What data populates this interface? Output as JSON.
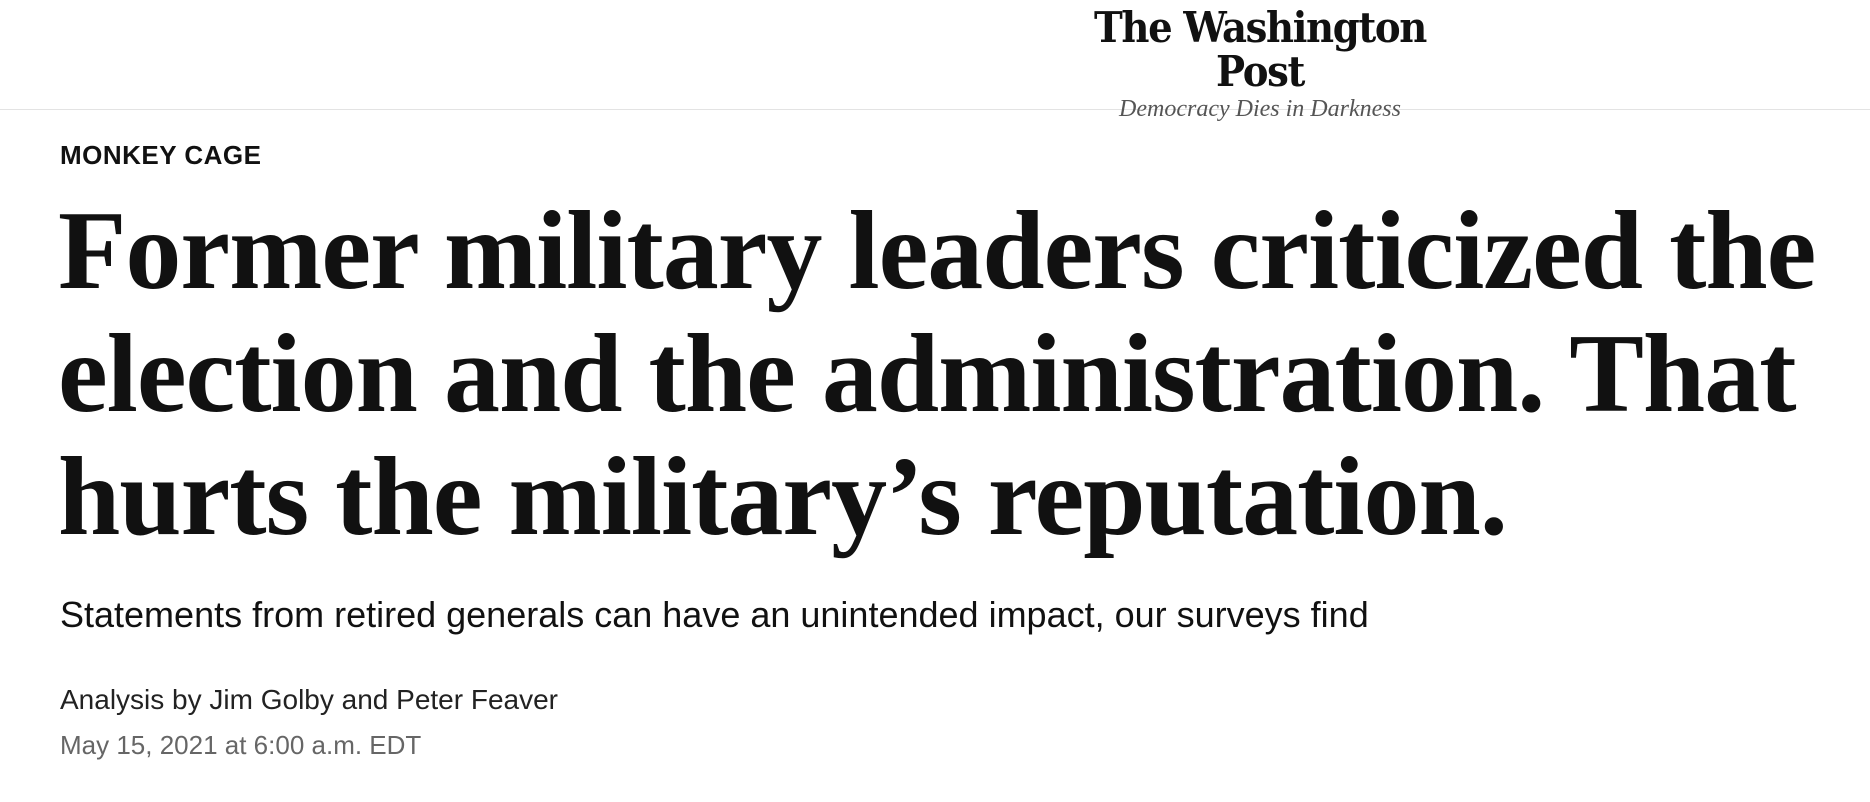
{
  "masthead": {
    "logo_text": "The Washington Post",
    "tagline": "Democracy Dies in Darkness"
  },
  "article": {
    "section": "MONKEY CAGE",
    "headline": "Former military leaders criticized the election and the administration. That hurts the military’s reputation.",
    "subheadline": "Statements from retired generals can have an unintended impact, our surveys find",
    "byline": {
      "prefix": "Analysis by",
      "author1": "Jim Golby",
      "conjunction": "and",
      "author2": "Peter Feaver"
    },
    "timestamp": "May 15, 2021 at 6:00 a.m. EDT"
  }
}
